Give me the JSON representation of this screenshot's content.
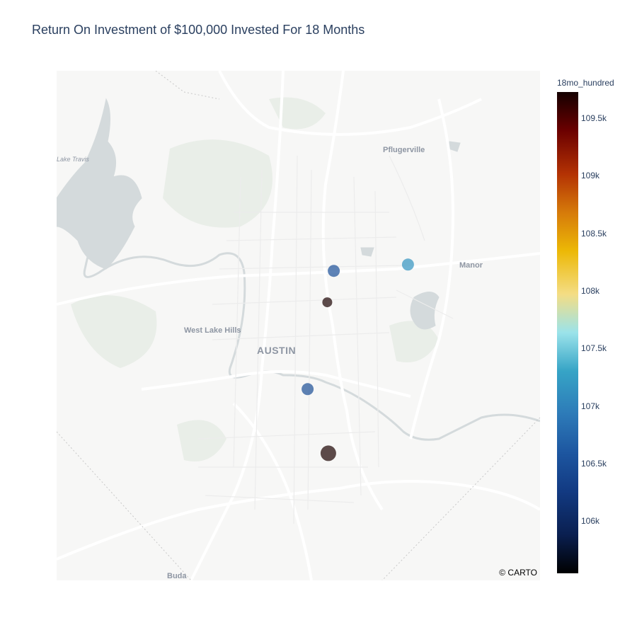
{
  "title": "Return On Investment of $100,000 Invested For 18 Months",
  "map": {
    "attribution": "© CARTO",
    "places": {
      "austin": "AUSTIN",
      "pflugerville": "Pflugerville",
      "manor": "Manor",
      "west_lake_hills": "West Lake Hills",
      "buda": "Buda",
      "lake_travis": "Lake Travis"
    },
    "colors": {
      "land": "#f7f7f6",
      "water": "#d4dadc",
      "road": "#ffffff",
      "park": "#e8ede8"
    }
  },
  "colorbar": {
    "title": "18mo_hundred",
    "ticks": [
      "109.5k",
      "109k",
      "108.5k",
      "108k",
      "107.5k",
      "107k",
      "106.5k",
      "106k"
    ]
  },
  "chart_data": {
    "type": "scatter",
    "title": "Return On Investment of $100,000 Invested For 18 Months",
    "colorbar_title": "18mo_hundred",
    "color_range": [
      105550,
      109720
    ],
    "points": [
      {
        "lon": -97.729,
        "lat": 30.331,
        "value": 106500,
        "size": "medium"
      },
      {
        "lon": -97.661,
        "lat": 30.336,
        "value": 107150,
        "size": "medium"
      },
      {
        "lon": -97.735,
        "lat": 30.306,
        "value": 109700,
        "size": "small"
      },
      {
        "lon": -97.753,
        "lat": 30.237,
        "value": 106480,
        "size": "medium"
      },
      {
        "lon": -97.734,
        "lat": 30.186,
        "value": 109700,
        "size": "large"
      }
    ],
    "colorscale": [
      [
        0.0,
        "#000000"
      ],
      [
        0.08,
        "#0a1f50"
      ],
      [
        0.17,
        "#123a82"
      ],
      [
        0.25,
        "#1d56a0"
      ],
      [
        0.33,
        "#2d7ab8"
      ],
      [
        0.42,
        "#36a4c6"
      ],
      [
        0.5,
        "#9be3ea"
      ],
      [
        0.58,
        "#f4dd84"
      ],
      [
        0.67,
        "#ecb806"
      ],
      [
        0.75,
        "#d67a0a"
      ],
      [
        0.83,
        "#b33204"
      ],
      [
        0.92,
        "#6b0000"
      ],
      [
        1.0,
        "#140000"
      ]
    ]
  }
}
